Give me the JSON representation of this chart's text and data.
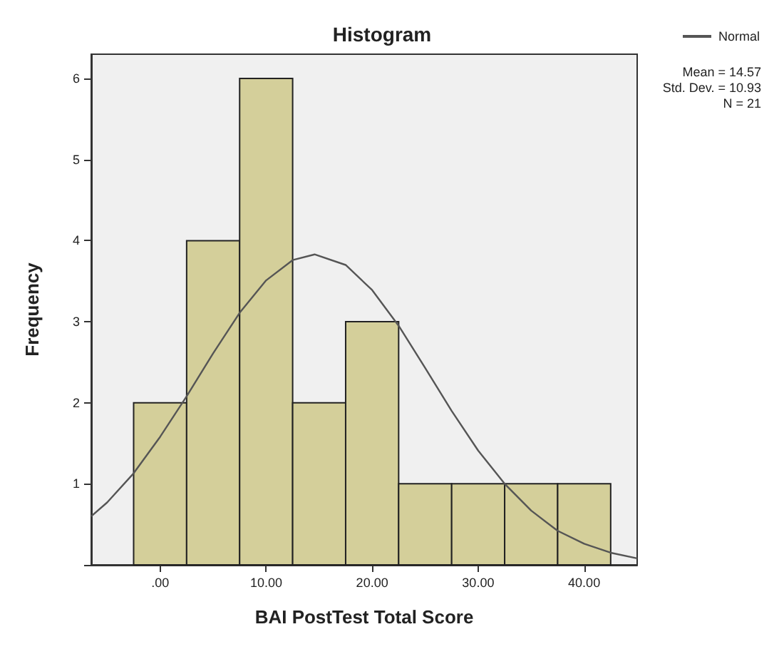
{
  "chart_data": {
    "type": "histogram",
    "title": "Histogram",
    "xlabel": "BAI PostTest Total Score",
    "ylabel": "Frequency",
    "bins": [
      -2.5,
      2.5,
      7.5,
      12.5,
      17.5,
      22.5,
      27.5,
      32.5,
      37.5,
      42.5
    ],
    "values": [
      2,
      4,
      6,
      2,
      3,
      1,
      1,
      1,
      1
    ],
    "color": "#d4cf9a",
    "series": [
      {
        "type": "line",
        "name": "Normal",
        "color": "#555555",
        "x": [
          -6.5,
          -5,
          -2.5,
          0,
          2.5,
          5,
          7.5,
          10,
          12.5,
          14.57,
          17.5,
          20,
          22.5,
          25,
          27.5,
          30,
          32.5,
          35,
          37.5,
          40,
          42.5,
          45
        ],
        "values": [
          0.6,
          0.77,
          1.13,
          1.58,
          2.08,
          2.61,
          3.11,
          3.51,
          3.76,
          3.83,
          3.7,
          3.39,
          2.95,
          2.43,
          1.9,
          1.41,
          1.0,
          0.67,
          0.42,
          0.26,
          0.15,
          0.08
        ]
      }
    ],
    "marker": "none",
    "legend": "top right",
    "grid": false,
    "xlim": [
      -6.5,
      45
    ],
    "xticks": [
      {
        "value": 0,
        "label": ".00"
      },
      {
        "value": 10,
        "label": "10.00"
      },
      {
        "value": 20,
        "label": "20.00"
      },
      {
        "value": 30,
        "label": "30.00"
      },
      {
        "value": 40,
        "label": "40.00"
      }
    ],
    "ylim": [
      0,
      6.3
    ],
    "yticks": [
      {
        "value": 0,
        "label": null
      },
      1,
      2,
      3,
      4,
      5,
      6
    ],
    "annotations": [
      "Mean = 14.57",
      "Std. Dev. = 10.93",
      "N = 21"
    ]
  }
}
